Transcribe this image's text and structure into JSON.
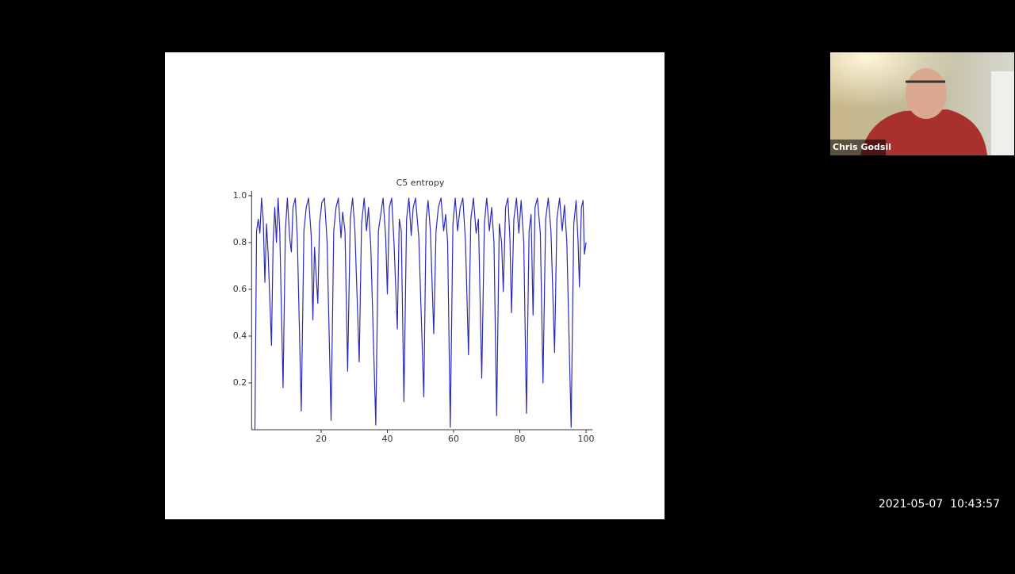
{
  "chart_data": {
    "type": "line",
    "title": "C5 entropy",
    "x": [
      0,
      0.5,
      1,
      1.5,
      2,
      2.5,
      3,
      3.5,
      4,
      5,
      5.5,
      6,
      6.5,
      7,
      7.5,
      8.5,
      9.2,
      9.8,
      10.5,
      11,
      11.5,
      12.2,
      12.8,
      14,
      14.8,
      15.5,
      16.2,
      17,
      17.5,
      18,
      19,
      19.5,
      20.2,
      21,
      21.8,
      23,
      23.8,
      24.5,
      25.2,
      26,
      26.5,
      27.2,
      28,
      28.8,
      29.5,
      30.2,
      31.5,
      32.2,
      33,
      33.7,
      34.3,
      35,
      36.5,
      37.3,
      38,
      38.7,
      39.5,
      40,
      40.6,
      41.3,
      42,
      43,
      43.6,
      44.2,
      45,
      45.8,
      46.5,
      47.2,
      47.8,
      48.5,
      49.5,
      51,
      51.7,
      52.3,
      53,
      54,
      54.7,
      55.4,
      56.2,
      57,
      57.6,
      58.2,
      59,
      59.8,
      60.5,
      61.2,
      62,
      62.8,
      63.6,
      64.5,
      65.2,
      66,
      66.8,
      67.5,
      68.5,
      69.3,
      70,
      70.8,
      71.5,
      72.2,
      73,
      73.8,
      74.5,
      75,
      75.7,
      76.4,
      77,
      77.5,
      78.2,
      79,
      79.7,
      80.4,
      81.2,
      82,
      82.8,
      83.4,
      84,
      84.6,
      85.3,
      86.2,
      87,
      87.8,
      88.6,
      89.4,
      90.5,
      91.2,
      92,
      92.8,
      93.5,
      94.2,
      95.5,
      96.3,
      97,
      97.6,
      98,
      98.6,
      99.1,
      99.5,
      100
    ],
    "values": [
      0,
      0.85,
      0.9,
      0.84,
      0.99,
      0.9,
      0.63,
      0.88,
      0.75,
      0.36,
      0.8,
      0.95,
      0.8,
      0.99,
      0.85,
      0.18,
      0.85,
      0.99,
      0.82,
      0.76,
      0.95,
      0.99,
      0.82,
      0.08,
      0.85,
      0.95,
      0.99,
      0.83,
      0.47,
      0.78,
      0.54,
      0.88,
      0.97,
      0.99,
      0.8,
      0.04,
      0.85,
      0.95,
      0.99,
      0.82,
      0.93,
      0.85,
      0.25,
      0.9,
      0.99,
      0.85,
      0.29,
      0.88,
      0.99,
      0.85,
      0.95,
      0.78,
      0.02,
      0.85,
      0.92,
      0.99,
      0.82,
      0.58,
      0.95,
      0.99,
      0.8,
      0.43,
      0.9,
      0.85,
      0.12,
      0.9,
      0.99,
      0.83,
      0.95,
      0.99,
      0.82,
      0.14,
      0.9,
      0.98,
      0.85,
      0.41,
      0.85,
      0.95,
      0.99,
      0.85,
      0.92,
      0.8,
      0.01,
      0.88,
      0.99,
      0.85,
      0.95,
      0.99,
      0.8,
      0.32,
      0.9,
      0.99,
      0.84,
      0.9,
      0.22,
      0.88,
      0.99,
      0.85,
      0.95,
      0.8,
      0.06,
      0.88,
      0.8,
      0.59,
      0.95,
      0.99,
      0.82,
      0.5,
      0.9,
      0.99,
      0.84,
      0.98,
      0.8,
      0.07,
      0.85,
      0.92,
      0.49,
      0.95,
      0.99,
      0.84,
      0.2,
      0.9,
      0.99,
      0.85,
      0.33,
      0.9,
      0.99,
      0.85,
      0.96,
      0.8,
      0.01,
      0.88,
      0.98,
      0.8,
      0.61,
      0.95,
      0.98,
      0.75,
      0.8
    ],
    "color": "#2b2bb8",
    "xlim": [
      -1,
      102
    ],
    "ylim": [
      0,
      1.02
    ],
    "xticks": [
      20,
      40,
      60,
      80,
      100
    ],
    "yticks": [
      0.2,
      0.4,
      0.6,
      0.8,
      {
        "value": 1,
        "label": "1.0"
      }
    ]
  },
  "participant": {
    "name": "Chris Godsil"
  },
  "timestamp": "2021-05-07  10:43:57"
}
